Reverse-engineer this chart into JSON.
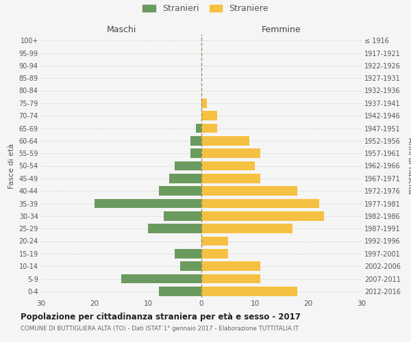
{
  "age_groups": [
    "100+",
    "95-99",
    "90-94",
    "85-89",
    "80-84",
    "75-79",
    "70-74",
    "65-69",
    "60-64",
    "55-59",
    "50-54",
    "45-49",
    "40-44",
    "35-39",
    "30-34",
    "25-29",
    "20-24",
    "15-19",
    "10-14",
    "5-9",
    "0-4"
  ],
  "birth_years": [
    "≤ 1916",
    "1917-1921",
    "1922-1926",
    "1927-1931",
    "1932-1936",
    "1937-1941",
    "1942-1946",
    "1947-1951",
    "1952-1956",
    "1957-1961",
    "1962-1966",
    "1967-1971",
    "1972-1976",
    "1977-1981",
    "1982-1986",
    "1987-1991",
    "1992-1996",
    "1997-2001",
    "2002-2006",
    "2007-2011",
    "2012-2016"
  ],
  "maschi": [
    0,
    0,
    0,
    0,
    0,
    0,
    0,
    1,
    2,
    2,
    5,
    6,
    8,
    20,
    7,
    10,
    0,
    5,
    4,
    15,
    8
  ],
  "femmine": [
    0,
    0,
    0,
    0,
    0,
    1,
    3,
    3,
    9,
    11,
    10,
    11,
    18,
    22,
    23,
    17,
    5,
    5,
    11,
    11,
    18
  ],
  "color_maschi": "#6b9a5e",
  "color_femmine": "#f5c142",
  "title": "Popolazione per cittadinanza straniera per età e sesso - 2017",
  "subtitle": "COMUNE DI BUTTIGLIERA ALTA (TO) - Dati ISTAT 1° gennaio 2017 - Elaborazione TUTTITALIA.IT",
  "xlabel_left": "Maschi",
  "xlabel_right": "Femmine",
  "ylabel_left": "Fasce di età",
  "ylabel_right": "Anni di nascita",
  "legend_maschi": "Stranieri",
  "legend_femmine": "Straniere",
  "xlim": 30,
  "background_color": "#f5f5f5",
  "grid_color": "#cccccc",
  "bar_height": 0.75,
  "centerline_color": "#888855"
}
